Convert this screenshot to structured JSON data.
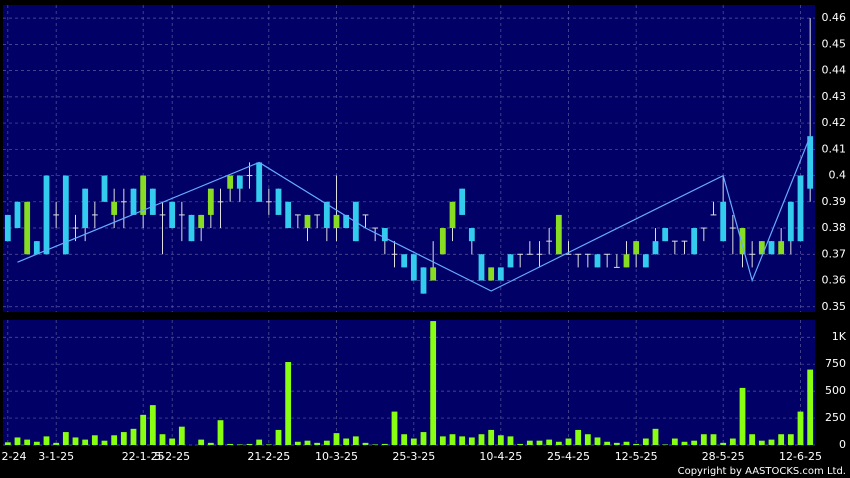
{
  "chart_data": {
    "type": "candlestick",
    "ohlc": [
      [
        0.385,
        0.385,
        0.375,
        0.375
      ],
      [
        0.39,
        0.39,
        0.38,
        0.38
      ],
      [
        0.37,
        0.39,
        0.37,
        0.39
      ],
      [
        0.375,
        0.375,
        0.37,
        0.37
      ],
      [
        0.4,
        0.4,
        0.37,
        0.37
      ],
      [
        0.385,
        0.39,
        0.38,
        0.385
      ],
      [
        0.4,
        0.4,
        0.37,
        0.37
      ],
      [
        0.38,
        0.385,
        0.375,
        0.38
      ],
      [
        0.395,
        0.395,
        0.375,
        0.38
      ],
      [
        0.385,
        0.39,
        0.38,
        0.385
      ],
      [
        0.4,
        0.4,
        0.39,
        0.39
      ],
      [
        0.385,
        0.395,
        0.38,
        0.39
      ],
      [
        0.39,
        0.395,
        0.38,
        0.39
      ],
      [
        0.395,
        0.395,
        0.385,
        0.385
      ],
      [
        0.385,
        0.4,
        0.38,
        0.4
      ],
      [
        0.395,
        0.395,
        0.385,
        0.385
      ],
      [
        0.385,
        0.39,
        0.37,
        0.385
      ],
      [
        0.39,
        0.39,
        0.38,
        0.38
      ],
      [
        0.385,
        0.39,
        0.375,
        0.385
      ],
      [
        0.385,
        0.385,
        0.375,
        0.375
      ],
      [
        0.38,
        0.385,
        0.375,
        0.385
      ],
      [
        0.385,
        0.395,
        0.38,
        0.395
      ],
      [
        0.39,
        0.395,
        0.38,
        0.39
      ],
      [
        0.395,
        0.4,
        0.39,
        0.4
      ],
      [
        0.4,
        0.4,
        0.39,
        0.395
      ],
      [
        0.4,
        0.405,
        0.395,
        0.4
      ],
      [
        0.405,
        0.405,
        0.39,
        0.39
      ],
      [
        0.39,
        0.395,
        0.385,
        0.39
      ],
      [
        0.395,
        0.395,
        0.385,
        0.385
      ],
      [
        0.39,
        0.39,
        0.38,
        0.38
      ],
      [
        0.385,
        0.385,
        0.38,
        0.385
      ],
      [
        0.38,
        0.385,
        0.375,
        0.385
      ],
      [
        0.385,
        0.385,
        0.38,
        0.385
      ],
      [
        0.39,
        0.39,
        0.375,
        0.38
      ],
      [
        0.38,
        0.4,
        0.375,
        0.385
      ],
      [
        0.385,
        0.385,
        0.38,
        0.38
      ],
      [
        0.39,
        0.39,
        0.375,
        0.375
      ],
      [
        0.385,
        0.385,
        0.38,
        0.385
      ],
      [
        0.38,
        0.38,
        0.375,
        0.38
      ],
      [
        0.38,
        0.38,
        0.37,
        0.375
      ],
      [
        0.37,
        0.375,
        0.365,
        0.37
      ],
      [
        0.37,
        0.37,
        0.365,
        0.365
      ],
      [
        0.37,
        0.37,
        0.36,
        0.36
      ],
      [
        0.365,
        0.365,
        0.355,
        0.355
      ],
      [
        0.36,
        0.375,
        0.36,
        0.365
      ],
      [
        0.37,
        0.38,
        0.37,
        0.38
      ],
      [
        0.38,
        0.39,
        0.375,
        0.39
      ],
      [
        0.395,
        0.395,
        0.385,
        0.385
      ],
      [
        0.38,
        0.38,
        0.37,
        0.375
      ],
      [
        0.37,
        0.37,
        0.36,
        0.36
      ],
      [
        0.36,
        0.365,
        0.36,
        0.365
      ],
      [
        0.365,
        0.365,
        0.36,
        0.36
      ],
      [
        0.37,
        0.37,
        0.365,
        0.365
      ],
      [
        0.37,
        0.37,
        0.365,
        0.37
      ],
      [
        0.37,
        0.375,
        0.37,
        0.37
      ],
      [
        0.37,
        0.375,
        0.365,
        0.37
      ],
      [
        0.375,
        0.38,
        0.37,
        0.375
      ],
      [
        0.37,
        0.385,
        0.37,
        0.385
      ],
      [
        0.37,
        0.375,
        0.37,
        0.37
      ],
      [
        0.37,
        0.37,
        0.365,
        0.37
      ],
      [
        0.37,
        0.37,
        0.365,
        0.37
      ],
      [
        0.37,
        0.37,
        0.365,
        0.365
      ],
      [
        0.37,
        0.37,
        0.365,
        0.37
      ],
      [
        0.365,
        0.37,
        0.365,
        0.365
      ],
      [
        0.365,
        0.375,
        0.365,
        0.37
      ],
      [
        0.37,
        0.375,
        0.365,
        0.375
      ],
      [
        0.37,
        0.37,
        0.365,
        0.365
      ],
      [
        0.375,
        0.38,
        0.37,
        0.37
      ],
      [
        0.38,
        0.38,
        0.375,
        0.375
      ],
      [
        0.375,
        0.375,
        0.37,
        0.375
      ],
      [
        0.375,
        0.375,
        0.37,
        0.375
      ],
      [
        0.38,
        0.38,
        0.37,
        0.37
      ],
      [
        0.38,
        0.38,
        0.375,
        0.38
      ],
      [
        0.385,
        0.39,
        0.385,
        0.385
      ],
      [
        0.39,
        0.4,
        0.375,
        0.375
      ],
      [
        0.38,
        0.385,
        0.37,
        0.38
      ],
      [
        0.37,
        0.38,
        0.365,
        0.38
      ],
      [
        0.37,
        0.375,
        0.365,
        0.37
      ],
      [
        0.37,
        0.375,
        0.37,
        0.375
      ],
      [
        0.375,
        0.375,
        0.37,
        0.37
      ],
      [
        0.37,
        0.38,
        0.37,
        0.375
      ],
      [
        0.39,
        0.39,
        0.37,
        0.375
      ],
      [
        0.4,
        0.4,
        0.375,
        0.375
      ],
      [
        0.415,
        0.46,
        0.39,
        0.395
      ]
    ],
    "up_color": "#88dd22",
    "down_color": "#33ccee",
    "volume": [
      25,
      70,
      50,
      30,
      80,
      20,
      120,
      70,
      50,
      90,
      40,
      90,
      120,
      150,
      280,
      370,
      100,
      60,
      170,
      0,
      50,
      20,
      230,
      10,
      5,
      10,
      50,
      5,
      140,
      770,
      30,
      40,
      20,
      40,
      110,
      60,
      80,
      20,
      5,
      10,
      310,
      100,
      60,
      120,
      1150,
      80,
      100,
      80,
      70,
      100,
      140,
      90,
      80,
      10,
      40,
      40,
      50,
      30,
      60,
      140,
      100,
      70,
      30,
      20,
      30,
      10,
      60,
      150,
      5,
      60,
      30,
      40,
      100,
      100,
      20,
      60,
      530,
      100,
      40,
      50,
      100,
      100,
      310,
      700
    ],
    "volume_color": "#88ff11",
    "zigzag": {
      "x": [
        1,
        26,
        37,
        50,
        74,
        77,
        83
      ],
      "values": [
        0.367,
        0.405,
        0.38,
        0.356,
        0.4,
        0.36,
        0.415
      ],
      "color": "#66aaff"
    },
    "ylim": [
      0.348,
      0.465
    ],
    "yticks": [
      0.35,
      0.36,
      0.37,
      0.38,
      0.39,
      {
        "value": 0.4,
        "label": "0.4"
      },
      0.41,
      0.42,
      0.43,
      0.44,
      0.45,
      0.46
    ],
    "vlim": [
      0,
      1160
    ],
    "vticks": [
      0,
      250,
      500,
      750,
      {
        "value": 1000,
        "label": "1K"
      }
    ],
    "xlim": [
      -0.5,
      83.5
    ],
    "xticks": [
      {
        "value": 0,
        "label": "2-24"
      },
      {
        "value": 5,
        "label": "3-1-25"
      },
      {
        "value": 14,
        "label": "22-1-25"
      },
      {
        "value": 17,
        "label": "5-2-25"
      },
      {
        "value": 27,
        "label": "21-2-25"
      },
      {
        "value": 34,
        "label": "10-3-25"
      },
      {
        "value": 42,
        "label": "25-3-25"
      },
      {
        "value": 51,
        "label": "10-4-25"
      },
      {
        "value": 58,
        "label": "25-4-25"
      },
      {
        "value": 65,
        "label": "12-5-25"
      },
      {
        "value": 74,
        "label": "28-5-25"
      },
      {
        "value": 82,
        "label": "12-6-25"
      }
    ],
    "grid": true,
    "copyright": "Copyright by AASTOCKS.com Ltd."
  }
}
